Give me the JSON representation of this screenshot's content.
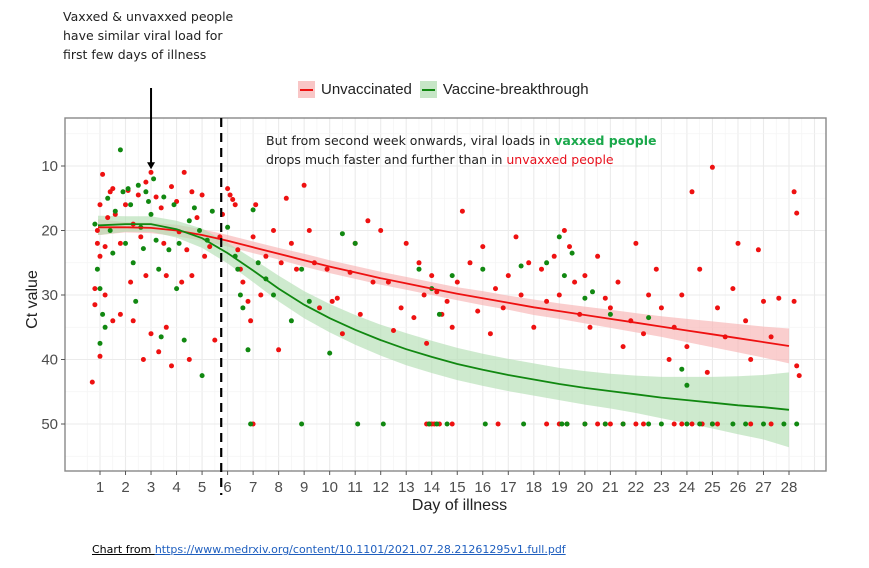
{
  "annotations": {
    "left": "Vaxxed & unvaxxed people have similar viral load for first few days of illness",
    "right_prefix": "But from second week onwards, viral loads in ",
    "right_green": "vaxxed people",
    "right_mid": " drops much faster and further than in ",
    "right_red": "unvaxxed people"
  },
  "source": {
    "label": "Chart  from ",
    "url_text": "https://www.medrxiv.org/content/10.1101/2021.07.28.21261295v1.full.pdf"
  },
  "legend": {
    "items": [
      {
        "label": "Unvaccinated",
        "color": "#ee1111",
        "fill": "#f9c6c6"
      },
      {
        "label": "Vaccine-breakthrough",
        "color": "#118811",
        "fill": "#c6e6c6"
      }
    ]
  },
  "chart_data": {
    "type": "scatter",
    "title": "",
    "xlabel": "Day of illness",
    "ylabel": "Ct value",
    "xlim": [
      -0.3,
      29.5
    ],
    "ylim": [
      2.5,
      57.5
    ],
    "y_reversed": true,
    "xticks": [
      1,
      2,
      3,
      4,
      5,
      6,
      7,
      8,
      9,
      10,
      11,
      12,
      13,
      14,
      15,
      16,
      17,
      18,
      19,
      20,
      21,
      22,
      23,
      24,
      25,
      26,
      27,
      28
    ],
    "yticks": [
      10,
      20,
      30,
      40,
      50
    ],
    "grid": true,
    "legend_position": "top",
    "vline": {
      "x": 5.75,
      "style": "dashed"
    },
    "arrow": {
      "x": 3,
      "to_y": 10.5
    },
    "series": [
      {
        "name": "Unvaccinated",
        "color": "#ee1111",
        "fit": {
          "x": [
            1,
            2,
            3,
            4,
            5,
            6,
            7,
            8,
            9,
            10,
            11,
            12,
            13,
            14,
            15,
            16,
            17,
            18,
            19,
            20,
            21,
            22,
            23,
            24,
            25,
            26,
            27,
            28
          ],
          "y": [
            19.5,
            19.5,
            19.6,
            20.0,
            20.7,
            21.6,
            22.6,
            23.6,
            24.6,
            25.6,
            26.5,
            27.4,
            28.2,
            29.0,
            29.8,
            30.5,
            31.2,
            31.9,
            32.5,
            33.1,
            33.7,
            34.3,
            34.9,
            35.5,
            36.1,
            36.7,
            37.3,
            37.9
          ],
          "ci_half": [
            1.2,
            0.8,
            0.8,
            0.9,
            0.9,
            0.9,
            0.9,
            0.9,
            1.0,
            1.0,
            1.0,
            1.0,
            1.0,
            1.0,
            1.0,
            1.1,
            1.1,
            1.2,
            1.2,
            1.3,
            1.4,
            1.5,
            1.6,
            1.8,
            2.0,
            2.2,
            2.4,
            2.7
          ]
        },
        "points": [
          [
            0.7,
            43.5
          ],
          [
            0.8,
            31.5
          ],
          [
            0.9,
            22
          ],
          [
            0.9,
            20
          ],
          [
            1.0,
            24
          ],
          [
            1.1,
            11.3
          ],
          [
            1.2,
            22.5
          ],
          [
            1.3,
            18
          ],
          [
            1.0,
            16
          ],
          [
            1.4,
            14
          ],
          [
            1.5,
            13.5
          ],
          [
            1.6,
            17.5
          ],
          [
            1.8,
            22
          ],
          [
            2.0,
            16
          ],
          [
            2.1,
            13.8
          ],
          [
            2.3,
            19
          ],
          [
            2.5,
            14.5
          ],
          [
            2.6,
            21
          ],
          [
            2.8,
            12.5
          ],
          [
            3.0,
            11
          ],
          [
            3.2,
            14.8
          ],
          [
            3.4,
            16.5
          ],
          [
            3.5,
            22
          ],
          [
            3.6,
            27
          ],
          [
            3.8,
            13.2
          ],
          [
            4.0,
            15.5
          ],
          [
            4.1,
            20.2
          ],
          [
            4.3,
            11
          ],
          [
            4.4,
            23
          ],
          [
            4.6,
            14
          ],
          [
            4.8,
            18
          ],
          [
            5.0,
            14.5
          ],
          [
            5.1,
            24
          ],
          [
            0.8,
            29
          ],
          [
            1.2,
            30
          ],
          [
            1.5,
            34
          ],
          [
            1.8,
            33
          ],
          [
            2.3,
            34
          ],
          [
            3.0,
            36
          ],
          [
            3.3,
            38.8
          ],
          [
            3.6,
            35
          ],
          [
            3.8,
            41
          ],
          [
            4.5,
            40
          ],
          [
            2.7,
            40
          ],
          [
            1.0,
            39.5
          ],
          [
            2.2,
            28
          ],
          [
            2.8,
            27
          ],
          [
            4.2,
            28
          ],
          [
            4.6,
            27
          ],
          [
            5.3,
            22.5
          ],
          [
            5.7,
            21
          ],
          [
            5.8,
            17.5
          ],
          [
            6.0,
            13.5
          ],
          [
            6.1,
            14.5
          ],
          [
            6.2,
            15.2
          ],
          [
            6.3,
            16
          ],
          [
            5.5,
            37
          ],
          [
            6.4,
            23
          ],
          [
            6.5,
            26
          ],
          [
            6.6,
            28
          ],
          [
            6.8,
            31
          ],
          [
            6.9,
            34
          ],
          [
            7.0,
            21
          ],
          [
            7.1,
            16
          ],
          [
            7.3,
            30
          ],
          [
            7.5,
            24
          ],
          [
            7.8,
            20
          ],
          [
            8.0,
            38.5
          ],
          [
            8.1,
            25
          ],
          [
            8.3,
            15
          ],
          [
            8.5,
            22
          ],
          [
            8.7,
            26
          ],
          [
            9.0,
            13
          ],
          [
            9.2,
            20
          ],
          [
            9.4,
            25
          ],
          [
            9.6,
            32
          ],
          [
            9.9,
            26
          ],
          [
            10.1,
            31
          ],
          [
            10.3,
            30.5
          ],
          [
            10.5,
            36
          ],
          [
            10.8,
            26.5
          ],
          [
            11.0,
            22
          ],
          [
            11.2,
            33
          ],
          [
            11.5,
            18.5
          ],
          [
            11.7,
            28
          ],
          [
            12.0,
            20
          ],
          [
            12.3,
            28
          ],
          [
            12.5,
            35.5
          ],
          [
            12.8,
            32
          ],
          [
            13.0,
            22
          ],
          [
            13.3,
            33.5
          ],
          [
            13.5,
            25
          ],
          [
            13.7,
            30
          ],
          [
            13.8,
            37.5
          ],
          [
            14.0,
            27
          ],
          [
            14.2,
            29.5
          ],
          [
            14.4,
            33
          ],
          [
            14.6,
            31
          ],
          [
            14.8,
            35
          ],
          [
            15.0,
            28
          ],
          [
            15.2,
            17
          ],
          [
            15.5,
            25
          ],
          [
            15.8,
            32.5
          ],
          [
            16.0,
            22.5
          ],
          [
            16.3,
            36
          ],
          [
            16.5,
            29
          ],
          [
            16.8,
            32
          ],
          [
            17.0,
            27
          ],
          [
            17.3,
            21
          ],
          [
            17.5,
            30
          ],
          [
            17.8,
            25
          ],
          [
            18.0,
            35
          ],
          [
            18.3,
            26
          ],
          [
            18.5,
            31
          ],
          [
            18.8,
            24
          ],
          [
            19.0,
            30
          ],
          [
            19.2,
            20
          ],
          [
            19.4,
            22.5
          ],
          [
            19.6,
            28
          ],
          [
            19.8,
            33
          ],
          [
            20.0,
            27
          ],
          [
            20.2,
            35
          ],
          [
            20.5,
            24
          ],
          [
            20.8,
            30.5
          ],
          [
            21.0,
            32
          ],
          [
            21.3,
            28
          ],
          [
            21.5,
            38
          ],
          [
            21.8,
            34
          ],
          [
            22.0,
            22
          ],
          [
            22.3,
            36
          ],
          [
            22.5,
            30
          ],
          [
            22.8,
            26
          ],
          [
            23.0,
            32
          ],
          [
            23.3,
            40
          ],
          [
            23.5,
            35
          ],
          [
            23.8,
            30
          ],
          [
            24.0,
            38
          ],
          [
            24.2,
            14
          ],
          [
            24.5,
            26
          ],
          [
            24.8,
            42
          ],
          [
            25.0,
            10.2
          ],
          [
            25.2,
            32
          ],
          [
            25.5,
            36.5
          ],
          [
            25.8,
            29
          ],
          [
            26.0,
            22
          ],
          [
            26.3,
            34
          ],
          [
            26.5,
            40
          ],
          [
            26.8,
            23
          ],
          [
            27.0,
            31
          ],
          [
            27.3,
            36.5
          ],
          [
            27.6,
            30.5
          ],
          [
            28.2,
            14
          ],
          [
            28.3,
            17.3
          ],
          [
            28.2,
            31
          ],
          [
            28.3,
            41
          ],
          [
            28.4,
            42.5
          ]
        ],
        "points_at_50": [
          7.0,
          13.8,
          13.9,
          14.0,
          14.1,
          14.3,
          14.8,
          16.6,
          18.5,
          19.0,
          19.3,
          20.0,
          20.5,
          20.8,
          21.0,
          21.5,
          22.0,
          22.3,
          23.5,
          23.8,
          24.2,
          24.6,
          25.0,
          25.2,
          26.5,
          27.3
        ]
      },
      {
        "name": "Vaccine-breakthrough",
        "color": "#118811",
        "fit": {
          "x": [
            1,
            2,
            3,
            4,
            5,
            6,
            7,
            8,
            9,
            10,
            11,
            12,
            13,
            14,
            15,
            16,
            17,
            18,
            19,
            20,
            21,
            22,
            23,
            24,
            25,
            26,
            27,
            28
          ],
          "y": [
            19.2,
            19.0,
            19.0,
            19.8,
            21.2,
            23.5,
            26.2,
            29.0,
            31.5,
            33.6,
            35.4,
            37.0,
            38.4,
            39.6,
            40.7,
            41.6,
            42.4,
            43.1,
            43.8,
            44.4,
            44.9,
            45.4,
            45.9,
            46.3,
            46.7,
            47.1,
            47.4,
            47.8
          ],
          "ci_half": [
            1.5,
            1.2,
            1.2,
            1.3,
            1.5,
            1.6,
            1.8,
            2.0,
            2.1,
            2.2,
            2.3,
            2.4,
            2.5,
            2.5,
            2.5,
            2.5,
            2.5,
            2.5,
            2.5,
            2.6,
            2.7,
            2.9,
            3.2,
            3.6,
            4.0,
            4.5,
            5.0,
            5.8
          ]
        },
        "points": [
          [
            0.8,
            19
          ],
          [
            0.9,
            26
          ],
          [
            1.0,
            29
          ],
          [
            1.0,
            37.5
          ],
          [
            1.1,
            33
          ],
          [
            1.2,
            35
          ],
          [
            1.3,
            15
          ],
          [
            1.4,
            20
          ],
          [
            1.5,
            23.5
          ],
          [
            1.6,
            17
          ],
          [
            1.8,
            7.5
          ],
          [
            1.9,
            14
          ],
          [
            2.0,
            22
          ],
          [
            2.1,
            13.5
          ],
          [
            2.2,
            16
          ],
          [
            2.3,
            25
          ],
          [
            2.4,
            31
          ],
          [
            2.5,
            13
          ],
          [
            2.6,
            19.5
          ],
          [
            2.7,
            22.8
          ],
          [
            2.8,
            14
          ],
          [
            2.9,
            15.5
          ],
          [
            3.0,
            17.5
          ],
          [
            3.1,
            12
          ],
          [
            3.2,
            21.5
          ],
          [
            3.3,
            26
          ],
          [
            3.4,
            36.5
          ],
          [
            3.5,
            14.8
          ],
          [
            3.7,
            23
          ],
          [
            3.9,
            16
          ],
          [
            4.0,
            29
          ],
          [
            4.1,
            22
          ],
          [
            4.3,
            37
          ],
          [
            4.5,
            18.5
          ],
          [
            4.7,
            16.5
          ],
          [
            4.9,
            20
          ],
          [
            5.0,
            42.5
          ],
          [
            5.2,
            21.5
          ],
          [
            5.4,
            17
          ],
          [
            6.0,
            19.5
          ],
          [
            6.3,
            24
          ],
          [
            6.4,
            26
          ],
          [
            6.5,
            30
          ],
          [
            6.6,
            32
          ],
          [
            6.8,
            38.5
          ],
          [
            7.0,
            16.8
          ],
          [
            7.2,
            25
          ],
          [
            7.5,
            27.5
          ],
          [
            7.8,
            30
          ],
          [
            8.5,
            34
          ],
          [
            8.9,
            26
          ],
          [
            9.2,
            31
          ],
          [
            10.0,
            39
          ],
          [
            10.5,
            20.5
          ],
          [
            11.0,
            22
          ],
          [
            13.5,
            26
          ],
          [
            14.0,
            29
          ],
          [
            14.3,
            33
          ],
          [
            14.8,
            27
          ],
          [
            16.0,
            26
          ],
          [
            17.5,
            25.5
          ],
          [
            18.5,
            25
          ],
          [
            19.0,
            21
          ],
          [
            19.2,
            27
          ],
          [
            19.5,
            23.5
          ],
          [
            20.0,
            30.5
          ],
          [
            20.3,
            29.5
          ],
          [
            21.0,
            33
          ],
          [
            22.5,
            33.5
          ],
          [
            23.8,
            41.5
          ],
          [
            24.0,
            44
          ]
        ],
        "points_at_50": [
          6.9,
          8.9,
          11.1,
          12.1,
          13.9,
          14.2,
          14.6,
          16.1,
          17.6,
          19.1,
          19.3,
          20.0,
          20.8,
          21.5,
          22.5,
          23.0,
          24.0,
          24.5,
          25.0,
          25.8,
          26.3,
          27.0,
          27.8,
          28.3
        ]
      }
    ]
  }
}
